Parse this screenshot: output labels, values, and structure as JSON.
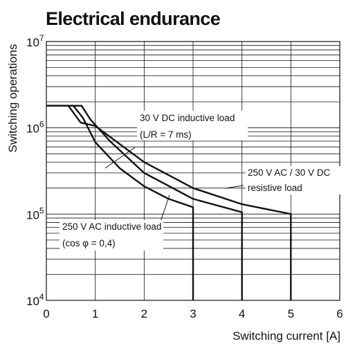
{
  "chart_data": {
    "type": "line",
    "title": "Electrical endurance",
    "xlabel": "Switching current [A]",
    "ylabel": "Switching operations",
    "xlim": [
      0,
      6
    ],
    "ylim": [
      10000,
      10000000
    ],
    "yscale": "log",
    "grid": true,
    "x_ticks": [
      "0",
      "1",
      "2",
      "3",
      "4",
      "5",
      "6"
    ],
    "y_ticks": [
      {
        "base": "10",
        "exp": "4",
        "value": 10000
      },
      {
        "base": "10",
        "exp": "5",
        "value": 100000
      },
      {
        "base": "10",
        "exp": "6",
        "value": 1000000
      },
      {
        "base": "10",
        "exp": "7",
        "value": 10000000
      }
    ],
    "series": [
      {
        "name": "250 V AC inductive load (cos φ = 0,4)",
        "annotation": [
          "250 V AC inductive load",
          "(cos φ = 0,4)"
        ],
        "points": [
          [
            0,
            1800000
          ],
          [
            0.55,
            1800000
          ],
          [
            0.75,
            1300000
          ],
          [
            1.0,
            680000
          ],
          [
            1.5,
            340000
          ],
          [
            2.0,
            210000
          ],
          [
            2.5,
            150000
          ],
          [
            3.0,
            120000
          ],
          [
            3.0,
            10000
          ]
        ]
      },
      {
        "name": "30 V DC inductive load (L/R = 7 ms)",
        "annotation": [
          "30 V DC inductive load",
          "(L/R = 7 ms)"
        ],
        "points": [
          [
            0,
            1800000
          ],
          [
            0.72,
            1800000
          ],
          [
            0.9,
            1250000
          ],
          [
            1.3,
            700000
          ],
          [
            2.0,
            300000
          ],
          [
            3.0,
            150000
          ],
          [
            4.0,
            105000
          ],
          [
            4.0,
            10000
          ]
        ]
      },
      {
        "name": "250 V AC / 30 V DC resistive load",
        "annotation": [
          "250 V AC / 30 V DC",
          "resistive load"
        ],
        "points": [
          [
            0,
            1800000
          ],
          [
            0.45,
            1800000
          ],
          [
            0.7,
            1150000
          ],
          [
            1.0,
            1050000
          ],
          [
            2.0,
            400000
          ],
          [
            3.0,
            200000
          ],
          [
            4.0,
            130000
          ],
          [
            5.0,
            100000
          ],
          [
            5.0,
            10000
          ]
        ]
      }
    ]
  }
}
